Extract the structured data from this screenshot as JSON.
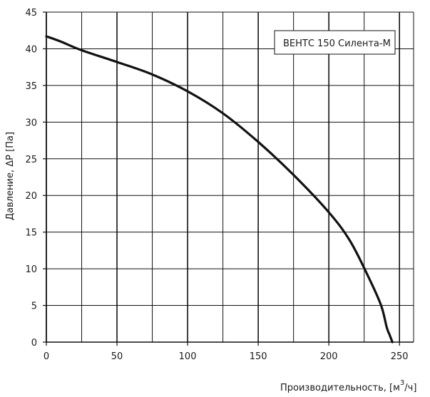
{
  "chart_data": {
    "type": "line",
    "title": "",
    "xlabel": "Производительность, [м 3/ч]",
    "ylabel": "Давление, ΔP [Па]",
    "xlim": [
      0,
      260
    ],
    "ylim": [
      0,
      45
    ],
    "x_ticks": [
      0,
      50,
      100,
      150,
      200,
      250
    ],
    "y_ticks": [
      0,
      5,
      10,
      15,
      20,
      25,
      30,
      35,
      40,
      45
    ],
    "grid": true,
    "legend_placement": "top-right",
    "series": [
      {
        "name": "ВЕНТС 150 Силента-М",
        "color": "#111111",
        "x": [
          0,
          10,
          25,
          50,
          75,
          100,
          125,
          150,
          175,
          200,
          215,
          228,
          237,
          241,
          243,
          245
        ],
        "y": [
          41.7,
          41.0,
          39.8,
          38.2,
          36.5,
          34.2,
          31.2,
          27.3,
          22.8,
          17.7,
          13.8,
          8.9,
          5.0,
          2.0,
          1.0,
          0
        ]
      }
    ]
  }
}
